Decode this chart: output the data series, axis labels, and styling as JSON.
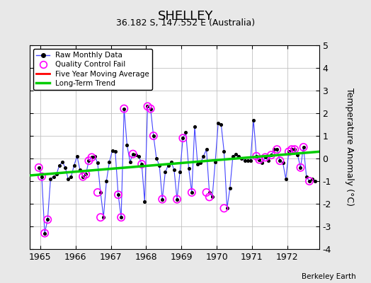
{
  "title": "SHELLEY",
  "subtitle": "36.182 S, 147.552 E (Australia)",
  "ylabel": "Temperature Anomaly (°C)",
  "credit": "Berkeley Earth",
  "xlim": [
    1964.7,
    1972.9
  ],
  "ylim": [
    -4,
    5
  ],
  "yticks": [
    -4,
    -3,
    -2,
    -1,
    0,
    1,
    2,
    3,
    4,
    5
  ],
  "xticks": [
    1965,
    1966,
    1967,
    1968,
    1969,
    1970,
    1971,
    1972
  ],
  "bg_color": "#e8e8e8",
  "plot_bg_color": "#ffffff",
  "raw_x": [
    1964.958,
    1965.042,
    1965.125,
    1965.208,
    1965.292,
    1965.375,
    1965.458,
    1965.542,
    1965.625,
    1965.708,
    1965.792,
    1965.875,
    1965.958,
    1966.042,
    1966.125,
    1966.208,
    1966.292,
    1966.375,
    1966.458,
    1966.542,
    1966.625,
    1966.708,
    1966.792,
    1966.875,
    1966.958,
    1967.042,
    1967.125,
    1967.208,
    1967.292,
    1967.375,
    1967.458,
    1967.542,
    1967.625,
    1967.708,
    1967.792,
    1967.875,
    1967.958,
    1968.042,
    1968.125,
    1968.208,
    1968.292,
    1968.375,
    1968.458,
    1968.542,
    1968.625,
    1968.708,
    1968.792,
    1968.875,
    1968.958,
    1969.042,
    1969.125,
    1969.208,
    1969.292,
    1969.375,
    1969.458,
    1969.542,
    1969.625,
    1969.708,
    1969.792,
    1969.875,
    1969.958,
    1970.042,
    1970.125,
    1970.208,
    1970.292,
    1970.375,
    1970.458,
    1970.542,
    1970.625,
    1970.708,
    1970.792,
    1970.875,
    1970.958,
    1971.042,
    1971.125,
    1971.208,
    1971.292,
    1971.375,
    1971.458,
    1971.542,
    1971.625,
    1971.708,
    1971.792,
    1971.875,
    1971.958,
    1972.042,
    1972.125,
    1972.208,
    1972.292,
    1972.375,
    1972.458,
    1972.542,
    1972.625,
    1972.708,
    1972.792
  ],
  "raw_y": [
    -0.4,
    -0.8,
    -3.3,
    -2.7,
    -0.9,
    -0.8,
    -0.7,
    -0.3,
    -0.15,
    -0.4,
    -0.9,
    -0.8,
    -0.3,
    0.1,
    -0.5,
    -0.8,
    -0.7,
    -0.1,
    0.05,
    0.1,
    -0.2,
    -1.5,
    -2.6,
    -1.0,
    -0.15,
    0.35,
    0.3,
    -1.6,
    -2.6,
    2.2,
    0.6,
    -0.15,
    0.2,
    0.15,
    0.1,
    -0.25,
    -1.9,
    2.3,
    2.2,
    1.0,
    0.0,
    -0.3,
    -1.8,
    -0.6,
    -0.3,
    -0.15,
    -0.5,
    -1.8,
    -0.6,
    0.9,
    1.15,
    -0.45,
    -1.5,
    1.4,
    -0.25,
    -0.2,
    0.1,
    0.4,
    -1.5,
    -1.7,
    -0.15,
    1.55,
    1.5,
    0.3,
    -2.2,
    -1.3,
    0.1,
    0.2,
    0.1,
    0.0,
    -0.1,
    -0.1,
    -0.1,
    1.7,
    0.1,
    -0.05,
    -0.2,
    0.05,
    -0.1,
    0.15,
    0.4,
    0.4,
    -0.1,
    -0.2,
    -0.9,
    0.3,
    0.4,
    0.4,
    0.15,
    -0.4,
    0.5,
    -0.8,
    -1.0,
    -0.9,
    -1.0
  ],
  "qc_fail_x": [
    1964.958,
    1965.042,
    1965.125,
    1965.208,
    1966.208,
    1966.292,
    1966.375,
    1966.458,
    1966.625,
    1966.708,
    1967.208,
    1967.292,
    1967.375,
    1967.625,
    1967.875,
    1968.042,
    1968.125,
    1968.208,
    1968.458,
    1968.875,
    1969.042,
    1969.292,
    1969.708,
    1969.792,
    1970.208,
    1971.125,
    1971.208,
    1971.375,
    1971.542,
    1971.708,
    1971.792,
    1972.042,
    1972.125,
    1972.208,
    1972.375,
    1972.458,
    1972.625
  ],
  "qc_fail_y": [
    -0.4,
    -0.8,
    -3.3,
    -2.7,
    -0.8,
    -0.7,
    -0.1,
    0.05,
    -1.5,
    -2.6,
    -1.6,
    -2.6,
    2.2,
    0.2,
    -0.25,
    2.3,
    2.2,
    1.0,
    -1.8,
    -1.8,
    0.9,
    -1.5,
    -1.5,
    -1.7,
    -2.2,
    0.1,
    -0.05,
    0.05,
    0.15,
    0.4,
    -0.1,
    0.3,
    0.4,
    0.4,
    -0.4,
    0.5,
    -1.0
  ],
  "trend_x": [
    1964.7,
    1972.9
  ],
  "trend_y": [
    -0.75,
    0.3
  ],
  "line_color": "#4444ff",
  "dot_color": "#000000",
  "qc_color": "magenta",
  "trend_color": "#00cc00",
  "ma_color": "red",
  "title_fontsize": 13,
  "subtitle_fontsize": 9,
  "tick_fontsize": 9,
  "ylabel_fontsize": 9
}
